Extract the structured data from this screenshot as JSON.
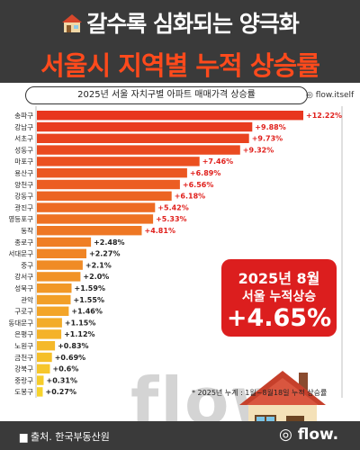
{
  "header": {
    "title_line1": "갈수록 심화되는 양극화",
    "title_line2": "서울시 지역별 누적 상승률"
  },
  "subtitle": "2025년 서울 자치구별 아파트 매매가격 상승률",
  "brand_badge": "flow.itself",
  "callout": {
    "line1": "2025년 8월",
    "line2": "서울 누적상승",
    "value": "+4.65%"
  },
  "watermark": "flow.",
  "footnote": "* 2025년 누계 : 1월~8월18일 누적 상승률",
  "footer": {
    "source": "출처. 한국부동산원",
    "logo": "flow."
  },
  "colors": {
    "header_bg": "#3a3a3a",
    "title_accent": "#ff4a1c",
    "bar_top": "#e8361e",
    "bar_bottom": "#f7d32c",
    "callout_bg": "#dc1e1e",
    "label_red": "#e0201c",
    "label_dark": "#222222"
  },
  "chart_data": {
    "type": "bar",
    "orientation": "horizontal",
    "categories": [
      "송파구",
      "강남구",
      "서초구",
      "성동구",
      "마포구",
      "용산구",
      "양천구",
      "강동구",
      "광진구",
      "영등포구",
      "동작",
      "종로구",
      "서대문구",
      "중구",
      "강서구",
      "성북구",
      "관악",
      "구로구",
      "동대문구",
      "은평구",
      "노원구",
      "금천구",
      "강북구",
      "중랑구",
      "도봉구"
    ],
    "values": [
      12.22,
      9.88,
      9.73,
      9.32,
      7.46,
      6.89,
      6.56,
      6.18,
      5.42,
      5.33,
      4.81,
      2.48,
      2.27,
      2.1,
      2.0,
      1.59,
      1.55,
      1.46,
      1.15,
      1.12,
      0.83,
      0.69,
      0.6,
      0.31,
      0.27
    ],
    "value_labels": [
      "+12.22%",
      "+9.88%",
      "+9.73%",
      "+9.32%",
      "+7.46%",
      "+6.89%",
      "+6.56%",
      "+6.18%",
      "+5.42%",
      "+5.33%",
      "+4.81%",
      "+2.48%",
      "+2.27%",
      "+2.1%",
      "+2.0%",
      "+1.59%",
      "+1.55%",
      "+1.46%",
      "+1.15%",
      "+1.12%",
      "+0.83%",
      "+0.69%",
      "+0.6%",
      "+0.31%",
      "+0.27%"
    ],
    "red_label_count": 11,
    "xlim": [
      0,
      12.22
    ],
    "grid": false,
    "legend": "none"
  }
}
